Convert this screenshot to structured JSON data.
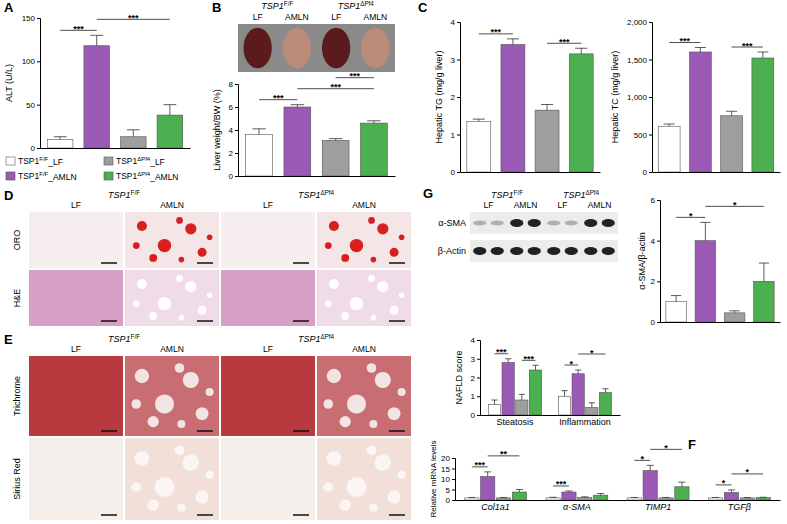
{
  "groups": [
    {
      "label": "TSP1F/F_LF",
      "color": "#ffffff"
    },
    {
      "label": "TSP1F/F_AMLN",
      "color": "#9b59b6"
    },
    {
      "label": "TSP1ΔPf4_LF",
      "color": "#9e9e9e"
    },
    {
      "label": "TSP1ΔPf4_AMLN",
      "color": "#4caf50"
    }
  ],
  "chart_data": [
    {
      "type": "bar",
      "panel_label": "A",
      "y_label": "ALT (U/L)",
      "categories": [
        null,
        null,
        null,
        null
      ],
      "values": [
        10,
        118,
        13,
        38
      ],
      "errors": [
        3,
        12,
        8,
        12
      ],
      "colors": [
        "#ffffff",
        "#9b59b6",
        "#9e9e9e",
        "#4caf50"
      ],
      "ylim": [
        0,
        150
      ],
      "yticks": [
        0,
        50,
        100,
        150
      ],
      "tick_labels": "y",
      "significance": [
        {
          "label": "***",
          "groups": [
            0,
            1
          ]
        },
        {
          "label": "***",
          "groups": [
            1,
            3
          ]
        }
      ]
    },
    {
      "type": "bar",
      "y_label": "Liver weight/BW (%)",
      "categories": [
        null,
        null,
        null,
        null
      ],
      "values": [
        3.6,
        6.0,
        3.1,
        4.6
      ],
      "errors": [
        0.5,
        0.2,
        0.15,
        0.2
      ],
      "colors": [
        "#ffffff",
        "#9b59b6",
        "#9e9e9e",
        "#4caf50"
      ],
      "ylim": [
        0,
        8
      ],
      "yticks": [
        0,
        2,
        4,
        6,
        8
      ],
      "tick_labels": "y",
      "significance": [
        {
          "label": "***",
          "groups": [
            0,
            1
          ]
        },
        {
          "label": "***",
          "groups": [
            1,
            3
          ]
        },
        {
          "label": "***",
          "groups": [
            2,
            3
          ]
        }
      ]
    },
    {
      "type": "bar",
      "panel_label": "C",
      "y_label": "Hepatic TG (mg/g liver)",
      "categories": [
        null,
        null,
        null,
        null
      ],
      "values": [
        1.35,
        3.4,
        1.65,
        3.15
      ],
      "errors": [
        0.06,
        0.15,
        0.15,
        0.15
      ],
      "colors": [
        "#ffffff",
        "#9b59b6",
        "#9e9e9e",
        "#4caf50"
      ],
      "ylim": [
        0,
        4
      ],
      "yticks": [
        0,
        1,
        2,
        3,
        4
      ],
      "tick_labels": "y",
      "significance": [
        {
          "label": "***",
          "groups": [
            0,
            1
          ]
        },
        {
          "label": "***",
          "groups": [
            2,
            3
          ]
        }
      ]
    },
    {
      "type": "bar",
      "y_label": "Hepatic TC (mg/g liver)",
      "categories": [
        null,
        null,
        null,
        null
      ],
      "values": [
        610,
        1600,
        750,
        1520
      ],
      "errors": [
        30,
        60,
        60,
        80
      ],
      "colors": [
        "#ffffff",
        "#9b59b6",
        "#9e9e9e",
        "#4caf50"
      ],
      "ylim": [
        0,
        2000
      ],
      "yticks": [
        0,
        500,
        {
          "value": 1000,
          "label": "1,000"
        },
        {
          "value": 1500,
          "label": "1,500"
        },
        {
          "value": 2000,
          "label": "2,000"
        }
      ],
      "tick_labels": "y",
      "significance": [
        {
          "label": "***",
          "groups": [
            0,
            1
          ]
        },
        {
          "label": "***",
          "groups": [
            2,
            3
          ]
        }
      ]
    },
    {
      "type": "bar",
      "y_label": "α-SMA/β-actin",
      "categories": [
        null,
        null,
        null,
        null
      ],
      "values": [
        1.0,
        4.0,
        0.45,
        2.0
      ],
      "errors": [
        0.3,
        0.9,
        0.1,
        0.9
      ],
      "colors": [
        "#ffffff",
        "#9b59b6",
        "#9e9e9e",
        "#4caf50"
      ],
      "ylim": [
        0,
        6
      ],
      "yticks": [
        0,
        2,
        4,
        6
      ],
      "tick_labels": "y",
      "significance": [
        {
          "label": "*",
          "groups": [
            0,
            1
          ]
        },
        {
          "label": "*",
          "groups": [
            1,
            3
          ]
        }
      ]
    },
    {
      "type": "bar",
      "y_label": "NAFLD score",
      "categories": [
        "Steatosis",
        "Inflammation"
      ],
      "series": [
        {
          "color": "#ffffff",
          "values": [
            0.55,
            1.0
          ],
          "errors": [
            0.25,
            0.3
          ]
        },
        {
          "color": "#9b59b6",
          "values": [
            2.8,
            2.2
          ],
          "errors": [
            0.2,
            0.2
          ]
        },
        {
          "color": "#9e9e9e",
          "values": [
            0.8,
            0.4
          ],
          "errors": [
            0.3,
            0.25
          ]
        },
        {
          "color": "#4caf50",
          "values": [
            2.4,
            1.2
          ],
          "errors": [
            0.25,
            0.2
          ]
        }
      ],
      "ylim": [
        0,
        4
      ],
      "yticks": [
        0,
        1,
        2,
        3,
        4
      ],
      "significance": [
        {
          "label": "***",
          "category": 0,
          "groups": [
            0,
            1
          ]
        },
        {
          "label": "***",
          "category": 0,
          "groups": [
            2,
            3
          ]
        },
        {
          "label": "*",
          "category": 1,
          "groups": [
            0,
            1
          ]
        },
        {
          "label": "*",
          "category": 1,
          "groups": [
            1,
            3
          ]
        }
      ]
    },
    {
      "type": "bar",
      "panel_label": "F",
      "y_label": "Relative mRNA levels",
      "categories": [
        "Col1a1",
        "α-SMA",
        "TIMP1",
        "TGFβ"
      ],
      "series": [
        {
          "color": "#ffffff",
          "values": [
            1.0,
            1.0,
            1.0,
            1.0
          ],
          "errors": [
            0.2,
            0.3,
            0.2,
            0.2
          ]
        },
        {
          "color": "#9b59b6",
          "values": [
            11.2,
            3.8,
            14.0,
            3.6
          ],
          "errors": [
            2.2,
            0.5,
            2.5,
            1.2
          ]
        },
        {
          "color": "#9e9e9e",
          "values": [
            1.0,
            1.2,
            1.0,
            1.0
          ],
          "errors": [
            0.2,
            0.3,
            0.2,
            0.2
          ]
        },
        {
          "color": "#4caf50",
          "values": [
            3.8,
            2.3,
            6.3,
            1.1
          ],
          "errors": [
            1.2,
            0.8,
            2.2,
            0.2
          ]
        }
      ],
      "ylim": [
        0,
        20
      ],
      "yticks": [
        0,
        5,
        10,
        15,
        20
      ],
      "significance": [
        {
          "label": "***",
          "category": 0,
          "groups": [
            0,
            1
          ]
        },
        {
          "label": "**",
          "category": 0,
          "groups": [
            1,
            3
          ]
        },
        {
          "label": "***",
          "category": 1,
          "groups": [
            0,
            1
          ]
        },
        {
          "label": "*",
          "category": 2,
          "groups": [
            0,
            1
          ]
        },
        {
          "label": "*",
          "category": 2,
          "groups": [
            1,
            3
          ]
        },
        {
          "label": "*",
          "category": 3,
          "groups": [
            0,
            1
          ]
        },
        {
          "label": "*",
          "category": 3,
          "groups": [
            1,
            3
          ]
        }
      ]
    }
  ],
  "image_panels": [
    {
      "panel_label": "B",
      "column_groups": [
        "TSP1F/F",
        "TSP1ΔPf4"
      ],
      "columns": [
        "LF",
        "AMLN",
        "LF",
        "AMLN"
      ]
    },
    {
      "panel_label": "D",
      "column_groups": [
        "TSP1F/F",
        "TSP1ΔPf4"
      ],
      "columns": [
        "LF",
        "AMLN",
        "LF",
        "AMLN"
      ],
      "rows": [
        "ORO",
        "H&E"
      ]
    },
    {
      "panel_label": "E",
      "column_groups": [
        "TSP1F/F",
        "TSP1ΔPf4"
      ],
      "columns": [
        "LF",
        "AMLN",
        "LF",
        "AMLN"
      ],
      "rows": [
        "Trichrome",
        "Sirius Red"
      ]
    },
    {
      "panel_label": "G",
      "column_groups": [
        "TSP1F/F",
        "TSP1ΔPf4"
      ],
      "columns": [
        "LF",
        "AMLN",
        "LF",
        "AMLN"
      ],
      "rows": [
        "α-SMA",
        "β-Actin"
      ]
    }
  ]
}
